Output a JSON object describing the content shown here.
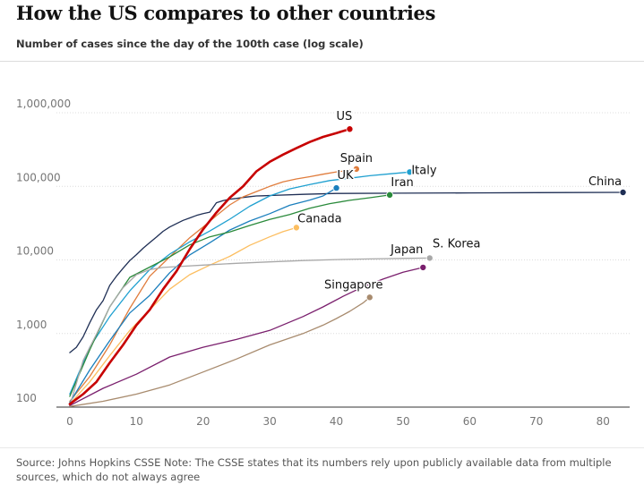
{
  "chart_data": {
    "type": "line",
    "title": "How the US compares to other countries",
    "subtitle": "Number of cases since the day of the 100th case (log scale)",
    "source": "Source: Johns Hopkins CSSE Note: The CSSE states that its numbers rely upon publicly available data from multiple sources, which do not always agree",
    "xlabel": "",
    "ylabel": "",
    "y_scale": "log",
    "xlim": [
      -2,
      84
    ],
    "ylim": [
      100,
      1000000
    ],
    "x_ticks": [
      0,
      10,
      20,
      30,
      40,
      50,
      60,
      70,
      80
    ],
    "y_ticks": [
      100,
      1000,
      10000,
      100000,
      1000000
    ],
    "y_tick_labels": [
      "100",
      "1,000",
      "10,000",
      "100,000",
      "1,000,000"
    ],
    "grid": "horizontal",
    "legend": "direct labels at line ends",
    "series": [
      {
        "name": "China",
        "color": "#1f2f55",
        "points": [
          [
            0,
            550
          ],
          [
            1,
            650
          ],
          [
            2,
            900
          ],
          [
            3,
            1400
          ],
          [
            4,
            2100
          ],
          [
            5,
            2800
          ],
          [
            6,
            4500
          ],
          [
            7,
            6000
          ],
          [
            8,
            7700
          ],
          [
            9,
            9800
          ],
          [
            10,
            11800
          ],
          [
            11,
            14400
          ],
          [
            12,
            17200
          ],
          [
            13,
            20400
          ],
          [
            14,
            24500
          ],
          [
            15,
            28000
          ],
          [
            16,
            31200
          ],
          [
            17,
            34500
          ],
          [
            18,
            37200
          ],
          [
            19,
            40200
          ],
          [
            20,
            42600
          ],
          [
            21,
            44600
          ],
          [
            22,
            59800
          ],
          [
            23,
            63800
          ],
          [
            24,
            67000
          ],
          [
            25,
            68500
          ],
          [
            26,
            70500
          ],
          [
            27,
            72400
          ],
          [
            28,
            74100
          ],
          [
            29,
            74500
          ],
          [
            30,
            75000
          ],
          [
            35,
            77800
          ],
          [
            40,
            80000
          ],
          [
            50,
            80800
          ],
          [
            60,
            81400
          ],
          [
            70,
            82000
          ],
          [
            83,
            82800
          ]
        ]
      },
      {
        "name": "US",
        "color": "#c70000",
        "points": [
          [
            0,
            110
          ],
          [
            2,
            150
          ],
          [
            4,
            220
          ],
          [
            6,
            400
          ],
          [
            8,
            700
          ],
          [
            10,
            1300
          ],
          [
            12,
            2100
          ],
          [
            14,
            4000
          ],
          [
            16,
            7000
          ],
          [
            18,
            14000
          ],
          [
            20,
            26000
          ],
          [
            22,
            44000
          ],
          [
            24,
            70000
          ],
          [
            26,
            100000
          ],
          [
            28,
            160000
          ],
          [
            30,
            215000
          ],
          [
            32,
            270000
          ],
          [
            34,
            330000
          ],
          [
            36,
            400000
          ],
          [
            38,
            470000
          ],
          [
            40,
            530000
          ],
          [
            42,
            600000
          ]
        ]
      },
      {
        "name": "Spain",
        "color": "#e07c3c",
        "points": [
          [
            0,
            120
          ],
          [
            3,
            260
          ],
          [
            6,
            700
          ],
          [
            9,
            2200
          ],
          [
            12,
            6000
          ],
          [
            15,
            11000
          ],
          [
            18,
            20000
          ],
          [
            20,
            28000
          ],
          [
            22,
            40000
          ],
          [
            24,
            56000
          ],
          [
            26,
            72000
          ],
          [
            28,
            85000
          ],
          [
            30,
            100000
          ],
          [
            32,
            115000
          ],
          [
            34,
            126000
          ],
          [
            36,
            135000
          ],
          [
            38,
            146000
          ],
          [
            40,
            157000
          ],
          [
            42,
            165000
          ],
          [
            43,
            172000
          ]
        ]
      },
      {
        "name": "Italy",
        "color": "#1fa0d0",
        "points": [
          [
            0,
            150
          ],
          [
            3,
            650
          ],
          [
            6,
            1700
          ],
          [
            9,
            3800
          ],
          [
            12,
            7400
          ],
          [
            15,
            12000
          ],
          [
            18,
            17600
          ],
          [
            21,
            24700
          ],
          [
            24,
            35700
          ],
          [
            27,
            53600
          ],
          [
            30,
            74000
          ],
          [
            33,
            92400
          ],
          [
            36,
            105800
          ],
          [
            39,
            119800
          ],
          [
            42,
            128900
          ],
          [
            45,
            139400
          ],
          [
            48,
            147600
          ],
          [
            51,
            156400
          ]
        ]
      },
      {
        "name": "UK",
        "color": "#1b7fbd",
        "points": [
          [
            0,
            115
          ],
          [
            3,
            320
          ],
          [
            6,
            800
          ],
          [
            9,
            1900
          ],
          [
            12,
            3300
          ],
          [
            15,
            6700
          ],
          [
            18,
            11700
          ],
          [
            21,
            17100
          ],
          [
            24,
            25500
          ],
          [
            27,
            33800
          ],
          [
            30,
            42500
          ],
          [
            33,
            55300
          ],
          [
            36,
            65000
          ],
          [
            38,
            74000
          ],
          [
            40,
            95000
          ]
        ]
      },
      {
        "name": "Iran",
        "color": "#2a8a3b",
        "points": [
          [
            0,
            140
          ],
          [
            3,
            600
          ],
          [
            6,
            2300
          ],
          [
            9,
            5800
          ],
          [
            12,
            8000
          ],
          [
            15,
            11000
          ],
          [
            18,
            16000
          ],
          [
            21,
            20600
          ],
          [
            24,
            24000
          ],
          [
            27,
            29400
          ],
          [
            30,
            35400
          ],
          [
            33,
            41500
          ],
          [
            36,
            50500
          ],
          [
            39,
            58200
          ],
          [
            42,
            64600
          ],
          [
            45,
            70000
          ],
          [
            48,
            76400
          ]
        ]
      },
      {
        "name": "Canada",
        "color": "#fcbe60",
        "points": [
          [
            0,
            110
          ],
          [
            3,
            220
          ],
          [
            6,
            500
          ],
          [
            9,
            1100
          ],
          [
            12,
            2100
          ],
          [
            15,
            4000
          ],
          [
            18,
            6300
          ],
          [
            21,
            8500
          ],
          [
            24,
            11200
          ],
          [
            27,
            15800
          ],
          [
            30,
            20600
          ],
          [
            32,
            24200
          ],
          [
            34,
            27500
          ]
        ]
      },
      {
        "name": "S. Korea",
        "color": "#a8a8a8",
        "points": [
          [
            0,
            104
          ],
          [
            2,
            430
          ],
          [
            4,
            980
          ],
          [
            6,
            2300
          ],
          [
            8,
            4200
          ],
          [
            10,
            6300
          ],
          [
            12,
            7400
          ],
          [
            14,
            7900
          ],
          [
            16,
            8100
          ],
          [
            20,
            8500
          ],
          [
            25,
            9000
          ],
          [
            30,
            9400
          ],
          [
            35,
            9800
          ],
          [
            40,
            10100
          ],
          [
            45,
            10300
          ],
          [
            50,
            10500
          ],
          [
            54,
            10600
          ]
        ]
      },
      {
        "name": "Japan",
        "color": "#7a1f6d",
        "points": [
          [
            0,
            105
          ],
          [
            5,
            180
          ],
          [
            10,
            280
          ],
          [
            15,
            480
          ],
          [
            20,
            650
          ],
          [
            25,
            830
          ],
          [
            30,
            1100
          ],
          [
            35,
            1700
          ],
          [
            38,
            2300
          ],
          [
            41,
            3200
          ],
          [
            44,
            4300
          ],
          [
            47,
            5500
          ],
          [
            50,
            6800
          ],
          [
            53,
            7900
          ]
        ]
      },
      {
        "name": "Singapore",
        "color": "#a88b6e",
        "points": [
          [
            0,
            102
          ],
          [
            5,
            120
          ],
          [
            10,
            150
          ],
          [
            15,
            200
          ],
          [
            20,
            300
          ],
          [
            25,
            450
          ],
          [
            30,
            700
          ],
          [
            35,
            1000
          ],
          [
            38,
            1300
          ],
          [
            40,
            1600
          ],
          [
            42,
            2000
          ],
          [
            44,
            2600
          ],
          [
            45,
            3100
          ]
        ]
      }
    ],
    "labels": [
      {
        "series": "US",
        "text": "US"
      },
      {
        "series": "Spain",
        "text": "Spain"
      },
      {
        "series": "Italy",
        "text": "Italy"
      },
      {
        "series": "UK",
        "text": "UK"
      },
      {
        "series": "Iran",
        "text": "Iran"
      },
      {
        "series": "China",
        "text": "China"
      },
      {
        "series": "Canada",
        "text": "Canada"
      },
      {
        "series": "S. Korea",
        "text": "S. Korea"
      },
      {
        "series": "Japan",
        "text": "Japan"
      },
      {
        "series": "Singapore",
        "text": "Singapore"
      }
    ]
  }
}
